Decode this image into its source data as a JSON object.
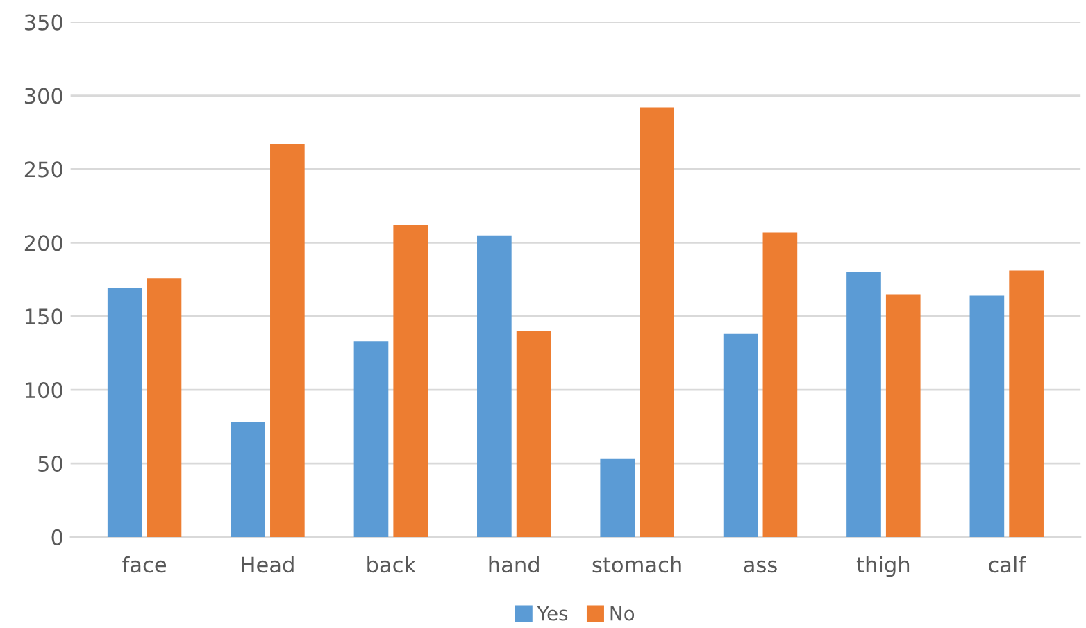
{
  "chart_data": {
    "type": "bar",
    "categories": [
      "face",
      "Head",
      "back",
      "hand",
      "stomach",
      "ass",
      "thigh",
      "calf"
    ],
    "series": [
      {
        "name": "Yes",
        "color": "#5b9bd5",
        "values": [
          169,
          78,
          133,
          205,
          53,
          138,
          180,
          164
        ]
      },
      {
        "name": "No",
        "color": "#ed7d31",
        "values": [
          176,
          267,
          212,
          140,
          292,
          207,
          165,
          181
        ]
      }
    ],
    "ylim": [
      0,
      350
    ],
    "yticks": [
      0,
      50,
      100,
      150,
      200,
      250,
      300,
      350
    ],
    "grid": "y",
    "legend": "bottom"
  }
}
